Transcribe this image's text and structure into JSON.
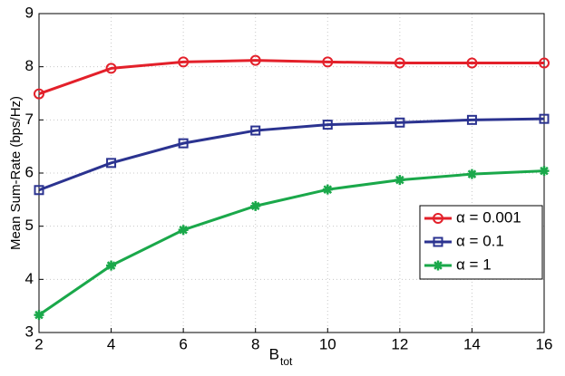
{
  "chart_data": {
    "type": "line",
    "x_label": "B",
    "x_label_subscript": "tot",
    "y_label": "Mean Sum-Rate (bps/Hz)",
    "x": [
      2,
      4,
      6,
      8,
      10,
      12,
      14,
      16
    ],
    "series": [
      {
        "name": "α = 0.001",
        "color": "#e3202a",
        "marker": "o",
        "values": [
          7.49,
          7.97,
          8.09,
          8.12,
          8.09,
          8.07,
          8.07,
          8.07
        ]
      },
      {
        "name": "α = 0.1",
        "color": "#2b3390",
        "marker": "s",
        "values": [
          5.68,
          6.19,
          6.56,
          6.8,
          6.91,
          6.95,
          7.0,
          7.02
        ]
      },
      {
        "name": "α = 1",
        "color": "#1aa84a",
        "marker": "*",
        "values": [
          3.33,
          4.26,
          4.93,
          5.38,
          5.69,
          5.87,
          5.98,
          6.04
        ]
      }
    ],
    "xlim": [
      2,
      16
    ],
    "xticks": [
      2,
      4,
      6,
      8,
      10,
      12,
      14,
      16
    ],
    "ylim": [
      3,
      9
    ],
    "yticks": [
      3,
      4,
      5,
      6,
      7,
      8,
      9
    ],
    "grid": true,
    "legend": "right"
  }
}
